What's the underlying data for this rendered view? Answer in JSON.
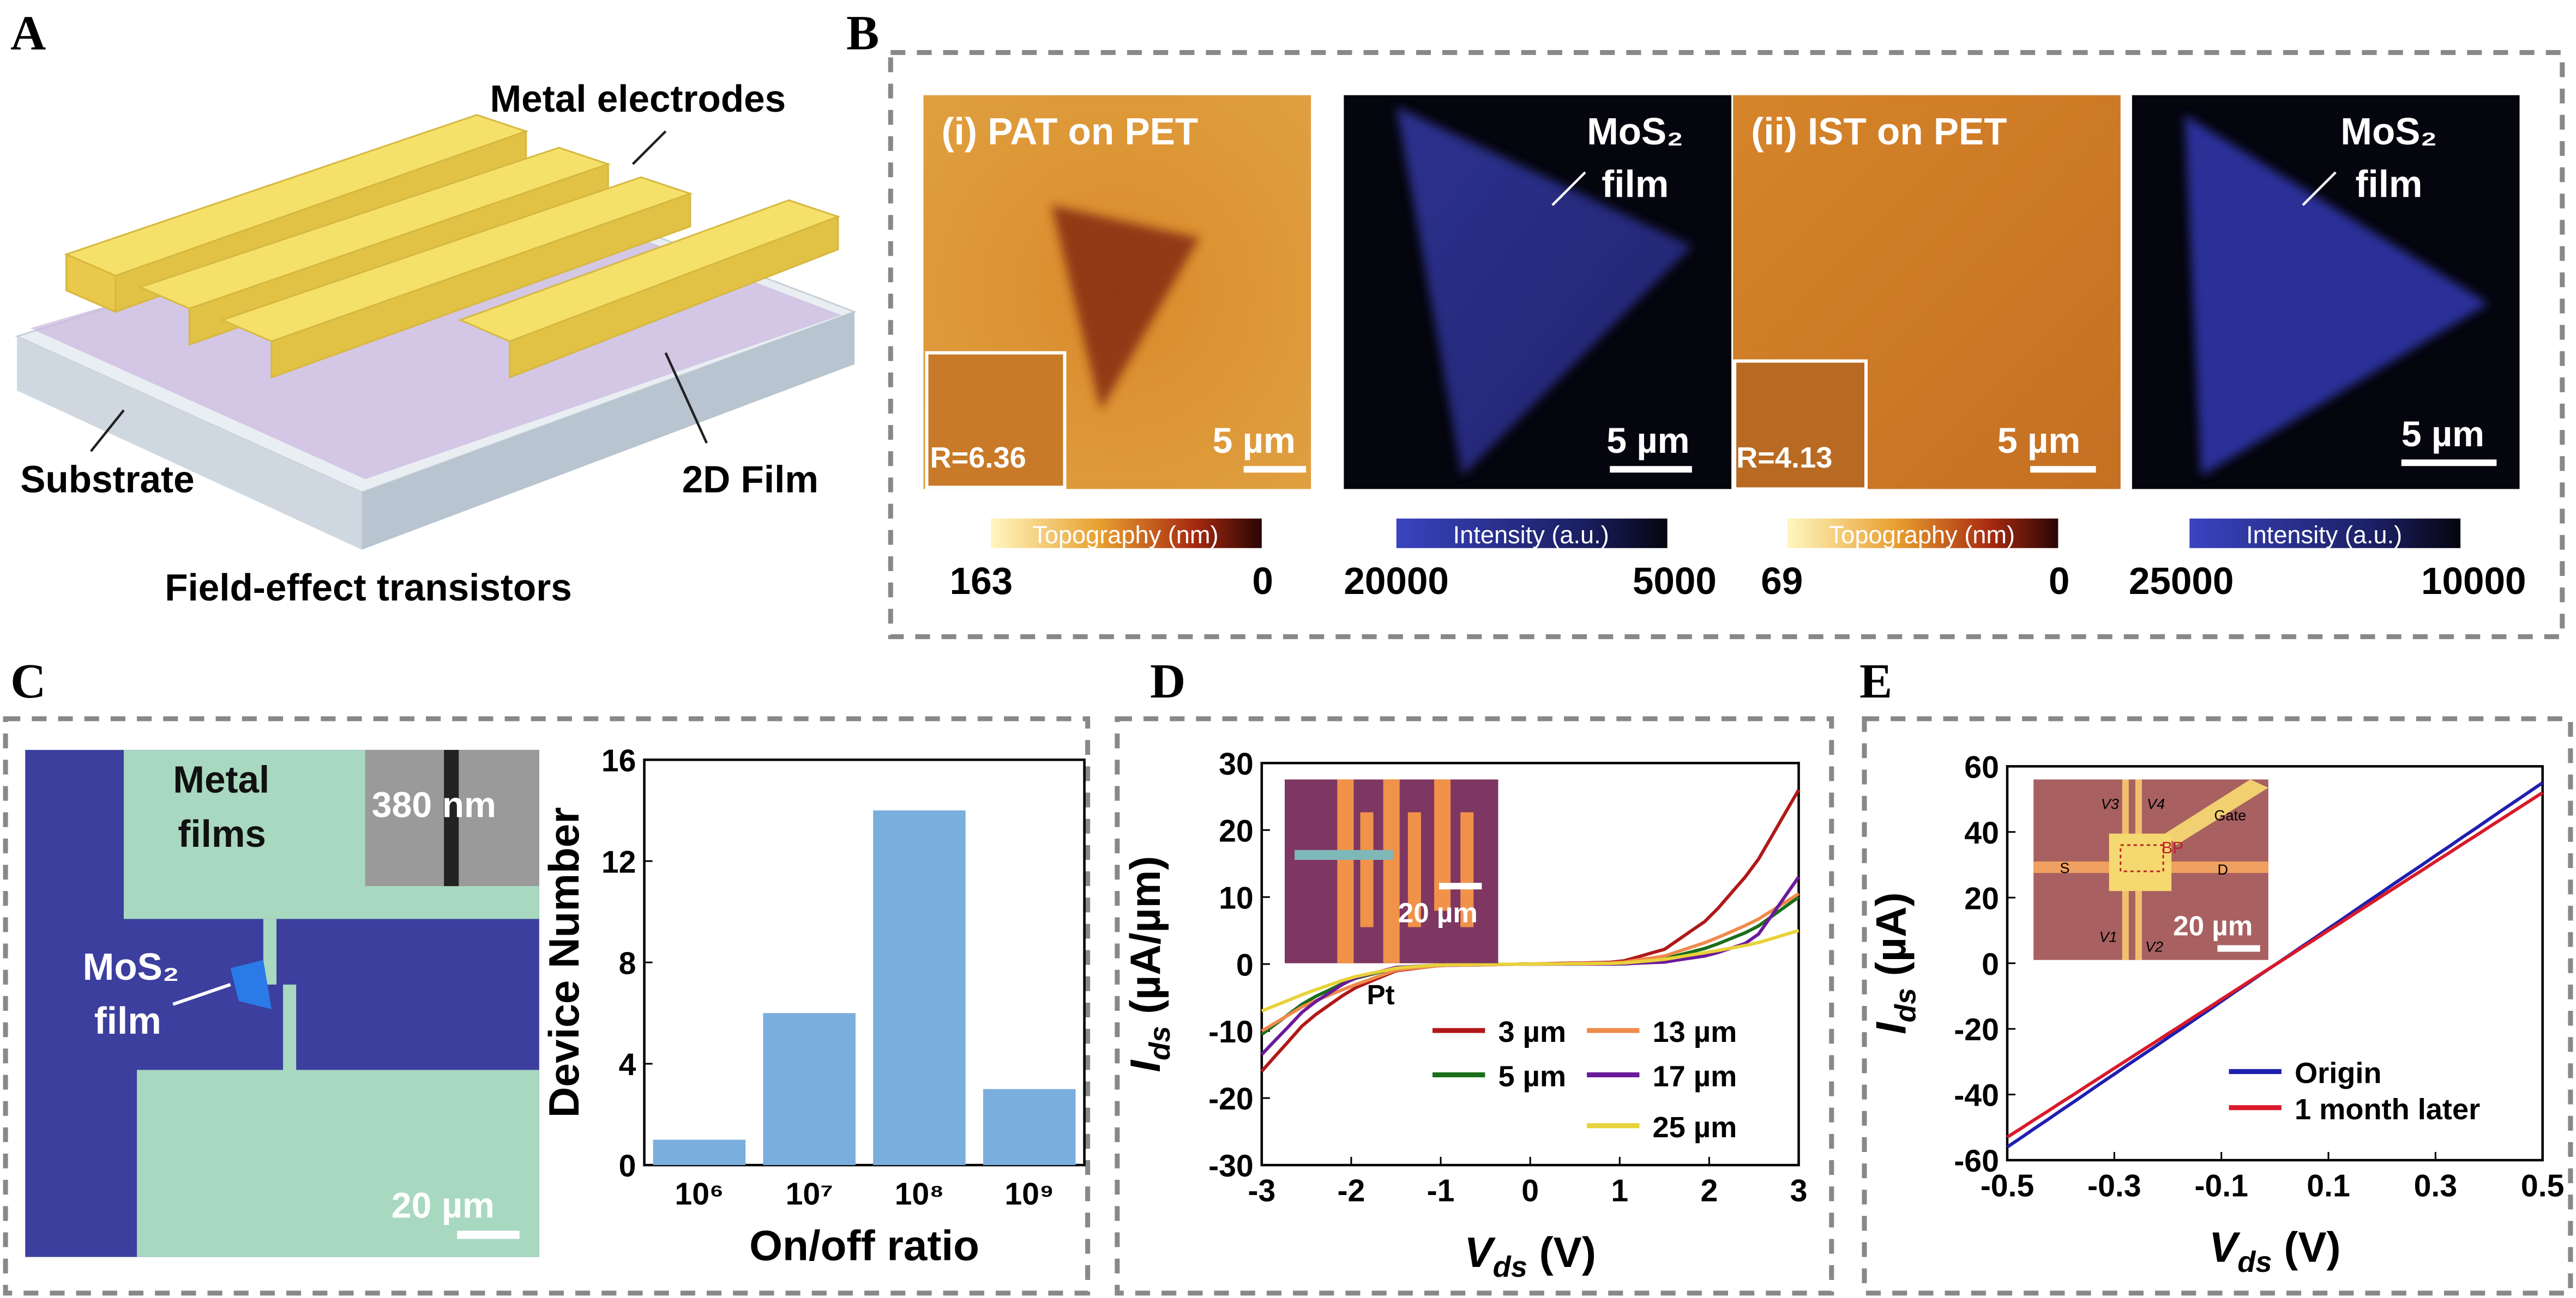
{
  "panels": {
    "A": {
      "letter": "A",
      "metal_electrodes": "Metal electrodes",
      "substrate": "Substrate",
      "film": "2D Film",
      "caption": "Field-effect transistors",
      "colors": {
        "electrode": "#f5e06a",
        "substrate": "#dfe6ee",
        "film": "#c9b6de"
      }
    },
    "B": {
      "letter": "B",
      "images": [
        {
          "label": "(i) PAT on PET",
          "inset_label": "R=6.36",
          "scale": "5 µm",
          "type": "topography"
        },
        {
          "label": "MoS₂",
          "label2": "film",
          "scale": "5 µm",
          "type": "intensity"
        },
        {
          "label": "(ii) IST on PET",
          "inset_label": "R=4.13",
          "scale": "5 µm",
          "type": "topography"
        },
        {
          "label": "MoS₂",
          "label2": "film",
          "scale": "5 µm",
          "type": "intensity"
        }
      ],
      "colorbars": [
        {
          "title": "Topography (nm)",
          "max": "163",
          "min": "0"
        },
        {
          "title": "Intensity (a.u.)",
          "max": "20000",
          "min": "5000"
        },
        {
          "title": "Topography (nm)",
          "max": "69",
          "min": "0"
        },
        {
          "title": "Intensity (a.u.)",
          "max": "25000",
          "min": "10000"
        }
      ]
    },
    "C": {
      "letter": "C",
      "metal": "Metal",
      "films": "films",
      "sem_scale": "380 nm",
      "mos2": "MoS₂",
      "film": "film",
      "scale": "20 µm"
    },
    "D": {
      "letter": "D",
      "inset_scale": "20 µm",
      "inset_label": "Pt"
    },
    "E": {
      "letter": "E",
      "inset_scale": "20 µm",
      "V3": "V3",
      "V4": "V4",
      "V1": "V1",
      "V2": "V2",
      "gate": "Gate",
      "S": "S",
      "D": "D",
      "BP": "BP"
    }
  },
  "chart_data": [
    {
      "id": "C",
      "type": "bar",
      "categories": [
        "10⁶",
        "10⁷",
        "10⁸",
        "10⁹"
      ],
      "values": [
        1,
        6,
        14,
        3
      ],
      "xlabel": "On/off ratio",
      "ylabel": "Device Number",
      "ylim": [
        0,
        16
      ],
      "yticks": [
        0,
        4,
        8,
        12,
        16
      ],
      "color": "#7aaedc"
    },
    {
      "id": "D",
      "type": "line",
      "xlabel": "V",
      "xlabel_sub": "ds",
      "xlabel_unit": " (V)",
      "ylabel": "I",
      "ylabel_sub": "ds",
      "ylabel_unit": " (µA/µm)",
      "xlim": [
        -3,
        3
      ],
      "ylim": [
        -30,
        30
      ],
      "xticks": [
        -3,
        -2,
        -1,
        0,
        1,
        2,
        3
      ],
      "yticks": [
        -30,
        -20,
        -10,
        0,
        10,
        20,
        30
      ],
      "x": [
        -3,
        -2.5,
        -2,
        -1.5,
        -1,
        0,
        1,
        1.5,
        2,
        2.5,
        3
      ],
      "series": [
        {
          "name": "3 µm",
          "color": "#b01818",
          "values": [
            -16,
            -8.5,
            -3.8,
            -1,
            -0.2,
            0,
            0.3,
            2.2,
            6.8,
            14.5,
            26
          ]
        },
        {
          "name": "5 µm",
          "color": "#1a6e1a",
          "values": [
            -10.5,
            -5.5,
            -2.3,
            -0.6,
            -0.1,
            0,
            0.1,
            0.8,
            2.5,
            5.2,
            10
          ]
        },
        {
          "name": "13 µm",
          "color": "#f08a4b",
          "values": [
            -10,
            -6,
            -3.3,
            -0.9,
            -0.2,
            0,
            0.2,
            1.2,
            3.4,
            6.3,
            10.5
          ]
        },
        {
          "name": "17 µm",
          "color": "#6a1a9a",
          "values": [
            -13.5,
            -6.5,
            -2.2,
            -0.5,
            -0.1,
            0,
            0,
            0.3,
            1.3,
            3.5,
            13
          ]
        },
        {
          "name": "25 µm",
          "color": "#e8d23a",
          "values": [
            -7,
            -4.3,
            -2,
            -0.6,
            -0.1,
            0,
            0.1,
            0.7,
            1.8,
            3,
            5
          ]
        }
      ]
    },
    {
      "id": "E",
      "type": "line",
      "xlabel": "V",
      "xlabel_sub": "ds",
      "xlabel_unit": " (V)",
      "ylabel": "I",
      "ylabel_sub": "ds",
      "ylabel_unit": " (µA)",
      "xlim": [
        -0.5,
        0.5
      ],
      "ylim": [
        -60,
        60
      ],
      "xticks": [
        -0.5,
        -0.3,
        -0.1,
        0.1,
        0.3,
        0.5
      ],
      "yticks": [
        -60,
        -40,
        -20,
        0,
        20,
        40,
        60
      ],
      "x": [
        -0.5,
        0.5
      ],
      "series": [
        {
          "name": "Origin",
          "color": "#1f1fb0",
          "values": [
            -56,
            55
          ]
        },
        {
          "name": "1 month later",
          "color": "#d81a2a",
          "values": [
            -53,
            52
          ]
        }
      ]
    }
  ]
}
